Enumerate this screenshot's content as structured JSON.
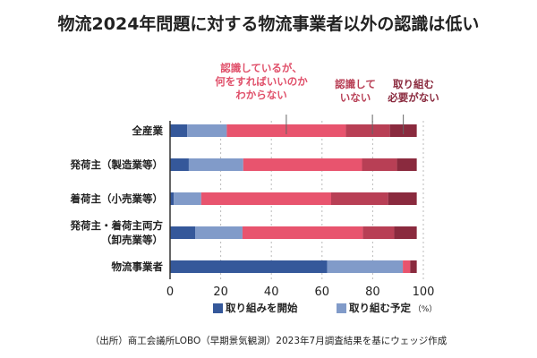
{
  "chart_data": {
    "type": "bar",
    "orientation": "horizontal-stacked",
    "title": "物流2024年問題に対する物流事業者以外の認識は低い",
    "categories": [
      "全産業",
      "発荷主（製造業等）",
      "着荷主（小売業等）",
      "発荷主・着荷主両方（卸売業等）",
      "物流事業者"
    ],
    "category_lines": [
      [
        "全産業"
      ],
      [
        "発荷主（製造業等）"
      ],
      [
        "着荷主（小売業等）"
      ],
      [
        "発荷主・着荷主両方",
        "（卸売業等）"
      ],
      [
        "物流事業者"
      ]
    ],
    "series": [
      {
        "name": "取り組みを開始",
        "color": "#35589a",
        "values": [
          6.8,
          7.4,
          1.5,
          9.9,
          62.0
        ]
      },
      {
        "name": "取り組む予定",
        "color": "#819bc9",
        "values": [
          15.6,
          21.5,
          10.8,
          18.7,
          29.9
        ]
      },
      {
        "name": "認識しているが、何をすればいいのかわからない",
        "color": "#e8546e",
        "values": [
          47.0,
          46.9,
          51.3,
          47.5,
          2.9
        ]
      },
      {
        "name": "認識していない",
        "color": "#b83f55",
        "values": [
          17.4,
          13.8,
          22.5,
          12.4,
          0
        ]
      },
      {
        "name": "取り組む必要がない",
        "color": "#8a2a3e",
        "values": [
          10.6,
          7.8,
          11.3,
          8.9,
          2.6
        ]
      }
    ],
    "annotations": [
      {
        "lines": [
          "認識しているが、",
          "何をすればいいのか",
          "わからない"
        ],
        "color": "#e0506a"
      },
      {
        "lines": [
          "認識して",
          "いない"
        ],
        "color": "#b83f55"
      },
      {
        "lines": [
          "取り組む",
          "必要がない"
        ],
        "color": "#8a2a3e"
      }
    ],
    "xlim": [
      0,
      100
    ],
    "xticks": [
      0,
      20,
      40,
      60,
      80,
      100
    ],
    "xunit": "（%）",
    "legend": [
      "取り組みを開始",
      "取り組む予定"
    ],
    "legend_position": "bottom",
    "grid": true
  },
  "source": "（出所）商工会議所LOBO（早期景気観測）2023年7月調査結果を基にウェッジ作成"
}
